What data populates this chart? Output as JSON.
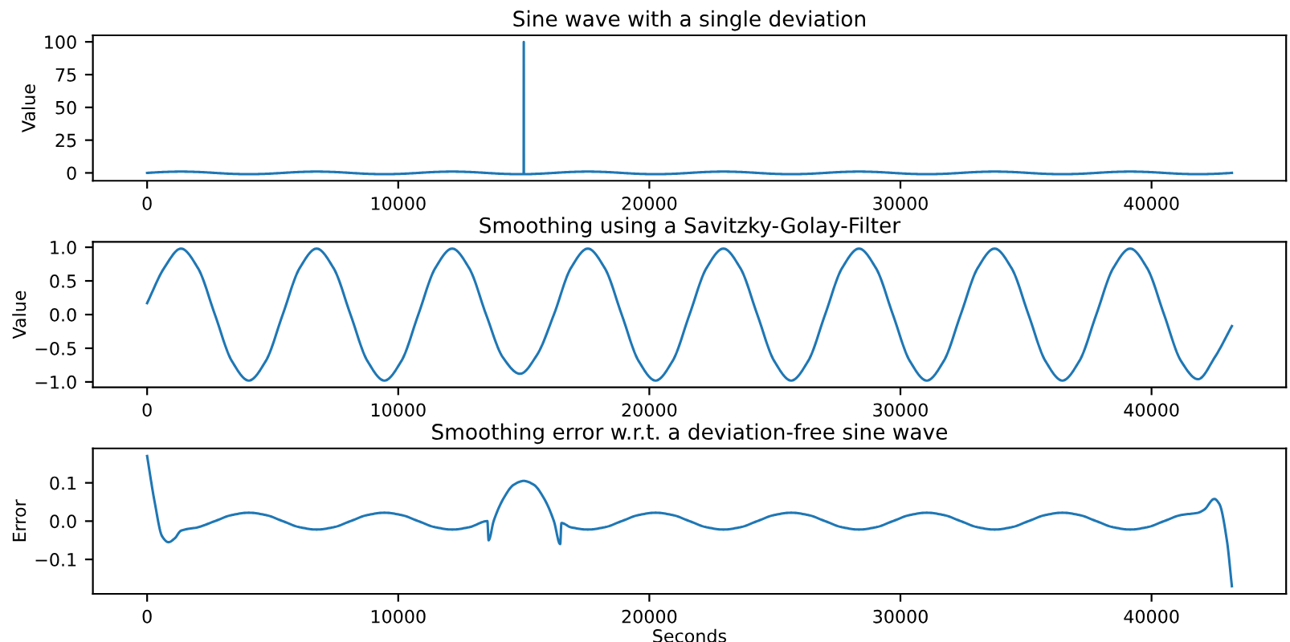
{
  "chart_data": [
    {
      "type": "line",
      "title": "Sine wave with a single deviation",
      "ylabel": "Value",
      "xlim": [
        -2160,
        45360
      ],
      "xticks": [
        0,
        10000,
        20000,
        30000,
        40000
      ],
      "ylim": [
        -6,
        105
      ],
      "yticks": [
        0,
        25,
        50,
        75,
        100
      ],
      "series": [
        {
          "color": "#1f77b4",
          "x": [
            0,
            675,
            1350,
            2025,
            2700,
            3375,
            4050,
            4725,
            5400,
            6075,
            6750,
            7425,
            8100,
            8775,
            9450,
            10125,
            10800,
            11475,
            12150,
            12825,
            13500,
            14175,
            14850,
            14995,
            15000,
            15005,
            15525,
            16200,
            16875,
            17550,
            18225,
            18900,
            19575,
            20250,
            20925,
            21600,
            22275,
            22950,
            23625,
            24300,
            24975,
            25650,
            26325,
            27000,
            27675,
            28350,
            29025,
            29700,
            30375,
            31050,
            31725,
            32400,
            33075,
            33750,
            34425,
            35100,
            35775,
            36450,
            37125,
            37800,
            38475,
            39150,
            39825,
            40500,
            41175,
            41850,
            42525,
            43200
          ],
          "values": [
            0,
            0.7,
            1,
            0.7,
            0,
            -0.7,
            -1,
            -0.7,
            0,
            0.7,
            1,
            0.7,
            0,
            -0.7,
            -1,
            -0.7,
            0,
            0.7,
            1,
            0.7,
            0,
            -0.7,
            -1,
            -1,
            100,
            -1,
            -0.7,
            0,
            0.7,
            1,
            0.7,
            0,
            -0.7,
            -1,
            -0.7,
            0,
            0.7,
            1,
            0.7,
            0,
            -0.7,
            -1,
            -0.7,
            0,
            0.7,
            1,
            0.7,
            0,
            -0.7,
            -1,
            -0.7,
            0,
            0.7,
            1,
            0.7,
            0,
            -0.7,
            -1,
            -0.7,
            0,
            0.7,
            1,
            0.7,
            0,
            -0.7,
            -1,
            -0.7,
            0
          ]
        }
      ]
    },
    {
      "type": "line",
      "title": "Smoothing using a Savitzky-Golay-Filter",
      "ylabel": "Value",
      "xlim": [
        -2160,
        45360
      ],
      "xticks": [
        0,
        10000,
        20000,
        30000,
        40000
      ],
      "ylim": [
        -1.08,
        1.08
      ],
      "yticks": [
        {
          "value": -1,
          "label": "−1.0"
        },
        {
          "value": -0.5,
          "label": "−0.5"
        },
        {
          "value": 0,
          "label": "0.0"
        },
        {
          "value": 0.5,
          "label": "0.5"
        },
        {
          "value": 1,
          "label": "1.0"
        }
      ],
      "series": [
        {
          "color": "#1f77b4",
          "x": [
            0,
            675,
            1350,
            2025,
            2700,
            3375,
            4050,
            4725,
            5400,
            6075,
            6750,
            7425,
            8100,
            8775,
            9450,
            10125,
            10800,
            11475,
            12150,
            12825,
            13500,
            14175,
            14850,
            15525,
            16200,
            16875,
            17550,
            18225,
            18900,
            19575,
            20250,
            20925,
            21600,
            22275,
            22950,
            23625,
            24300,
            24975,
            25650,
            26325,
            27000,
            27675,
            28350,
            29025,
            29700,
            30375,
            31050,
            31725,
            32400,
            33075,
            33750,
            34425,
            35100,
            35775,
            36450,
            37125,
            37800,
            38475,
            39150,
            39825,
            40500,
            41175,
            41850,
            42525,
            43200
          ],
          "values": [
            0.17,
            0.69,
            0.98,
            0.69,
            0,
            -0.69,
            -0.98,
            -0.69,
            0,
            0.69,
            0.98,
            0.69,
            0,
            -0.69,
            -0.98,
            -0.69,
            0,
            0.69,
            0.98,
            0.69,
            0,
            -0.64,
            -0.88,
            -0.6,
            0,
            0.69,
            0.98,
            0.69,
            0,
            -0.69,
            -0.98,
            -0.69,
            0,
            0.69,
            0.98,
            0.69,
            0,
            -0.69,
            -0.98,
            -0.69,
            0,
            0.69,
            0.98,
            0.69,
            0,
            -0.69,
            -0.98,
            -0.69,
            0,
            0.69,
            0.98,
            0.69,
            0,
            -0.69,
            -0.98,
            -0.69,
            0,
            0.69,
            0.98,
            0.69,
            0,
            -0.69,
            -0.96,
            -0.63,
            -0.17
          ]
        }
      ]
    },
    {
      "type": "line",
      "title": "Smoothing error w.r.t. a deviation-free sine wave",
      "xlabel": "Seconds",
      "ylabel": "Error",
      "xlim": [
        -2160,
        45360
      ],
      "xticks": [
        0,
        10000,
        20000,
        30000,
        40000
      ],
      "ylim": [
        -0.19,
        0.19
      ],
      "yticks": [
        {
          "value": -0.1,
          "label": "−0.1"
        },
        {
          "value": 0,
          "label": "0.0"
        },
        {
          "value": 0.1,
          "label": "0.1"
        }
      ],
      "series": [
        {
          "color": "#1f77b4",
          "x": [
            0,
            300,
            600,
            850,
            1100,
            1350,
            2025,
            2700,
            3375,
            4050,
            4725,
            5400,
            6075,
            6750,
            7425,
            8100,
            8775,
            9450,
            10125,
            10800,
            11475,
            12150,
            12825,
            13550,
            13600,
            13800,
            14200,
            14600,
            15000,
            15400,
            15800,
            16200,
            16450,
            16500,
            16875,
            17550,
            18225,
            18900,
            19575,
            20250,
            20925,
            21600,
            22275,
            22950,
            23625,
            24300,
            24975,
            25650,
            26325,
            27000,
            27675,
            28350,
            29025,
            29700,
            30375,
            31050,
            31725,
            32400,
            33075,
            33750,
            34425,
            35100,
            35775,
            36450,
            37125,
            37800,
            38475,
            39150,
            39825,
            40500,
            41175,
            41850,
            42100,
            42500,
            42700,
            43000,
            43200
          ],
          "values": [
            0.17,
            0.05,
            -0.04,
            -0.055,
            -0.045,
            -0.025,
            -0.016,
            0,
            0.016,
            0.022,
            0.016,
            0,
            -0.016,
            -0.022,
            -0.016,
            0,
            0.016,
            0.022,
            0.016,
            0,
            -0.016,
            -0.022,
            -0.016,
            0,
            -0.05,
            0,
            0.06,
            0.095,
            0.105,
            0.095,
            0.06,
            0,
            -0.06,
            -0.005,
            -0.016,
            -0.022,
            -0.016,
            0,
            0.016,
            0.022,
            0.016,
            0,
            -0.016,
            -0.022,
            -0.016,
            0,
            0.016,
            0.022,
            0.016,
            0,
            -0.016,
            -0.022,
            -0.016,
            0,
            0.016,
            0.022,
            0.016,
            0,
            -0.016,
            -0.022,
            -0.016,
            0,
            0.016,
            0.022,
            0.016,
            0,
            -0.016,
            -0.022,
            -0.016,
            0,
            0.016,
            0.022,
            0.03,
            0.058,
            0.045,
            -0.05,
            -0.17
          ]
        }
      ]
    }
  ]
}
